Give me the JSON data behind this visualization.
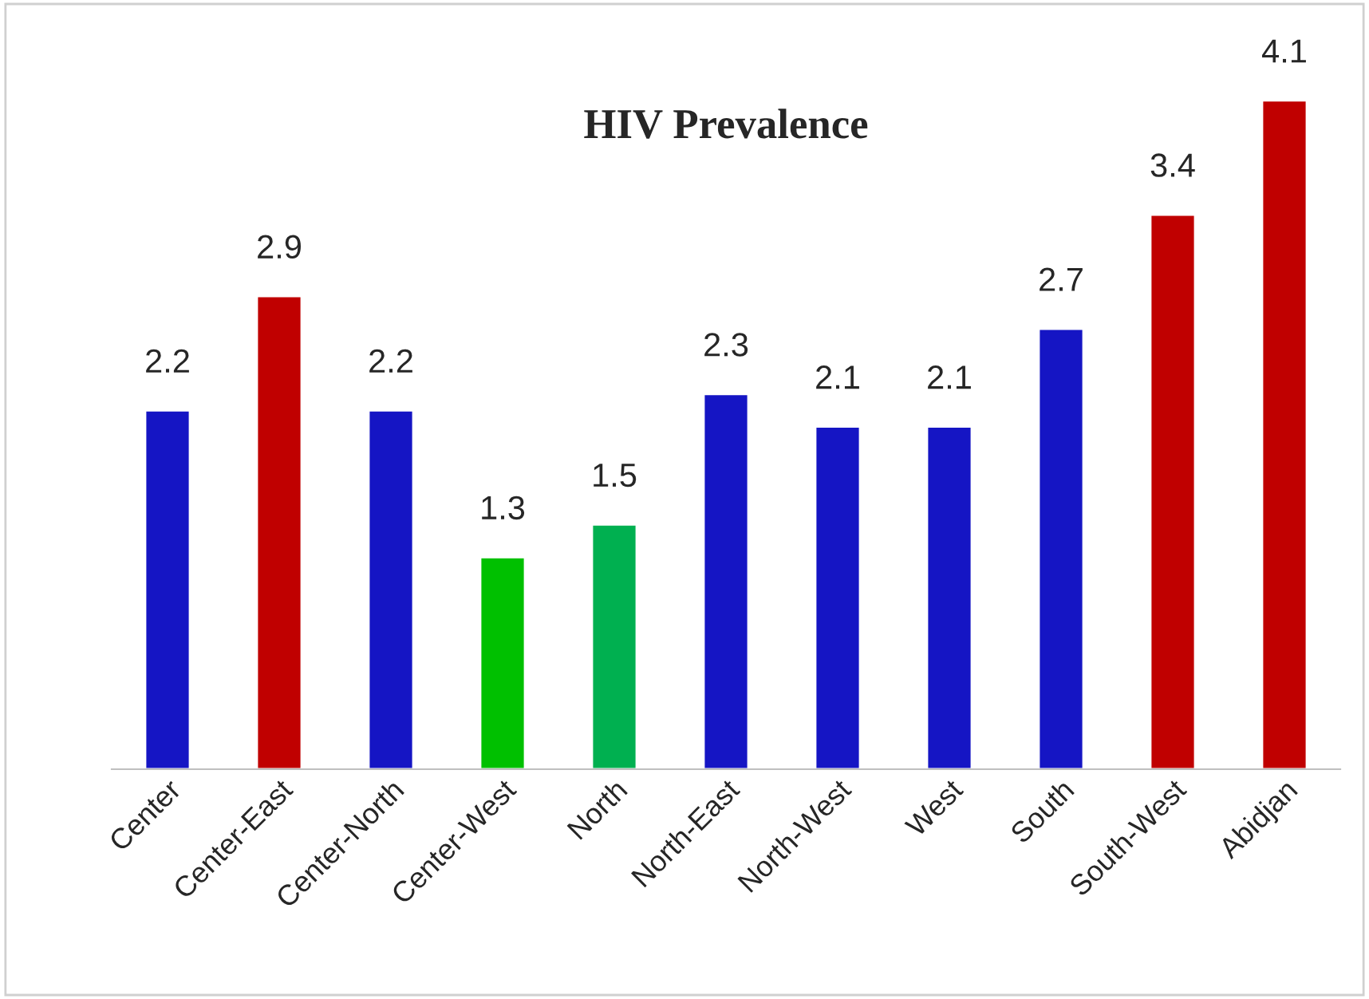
{
  "chart_data": {
    "type": "bar",
    "title": "HIV Prevalence",
    "categories": [
      "Center",
      "Center-East",
      "Center-North",
      "Center-West",
      "North",
      "North-East",
      "North-West",
      "West",
      "South",
      "South-West",
      "Abidjan"
    ],
    "values": [
      2.2,
      2.9,
      2.2,
      1.3,
      1.5,
      2.3,
      2.1,
      2.1,
      2.7,
      3.4,
      4.1
    ],
    "colors": [
      "#1515c4",
      "#c00000",
      "#1515c4",
      "#00c000",
      "#00b050",
      "#1515c4",
      "#1515c4",
      "#1515c4",
      "#1515c4",
      "#c00000",
      "#c00000"
    ],
    "data_labels": true,
    "tick_labels": "x",
    "grid": false,
    "legend": false
  }
}
